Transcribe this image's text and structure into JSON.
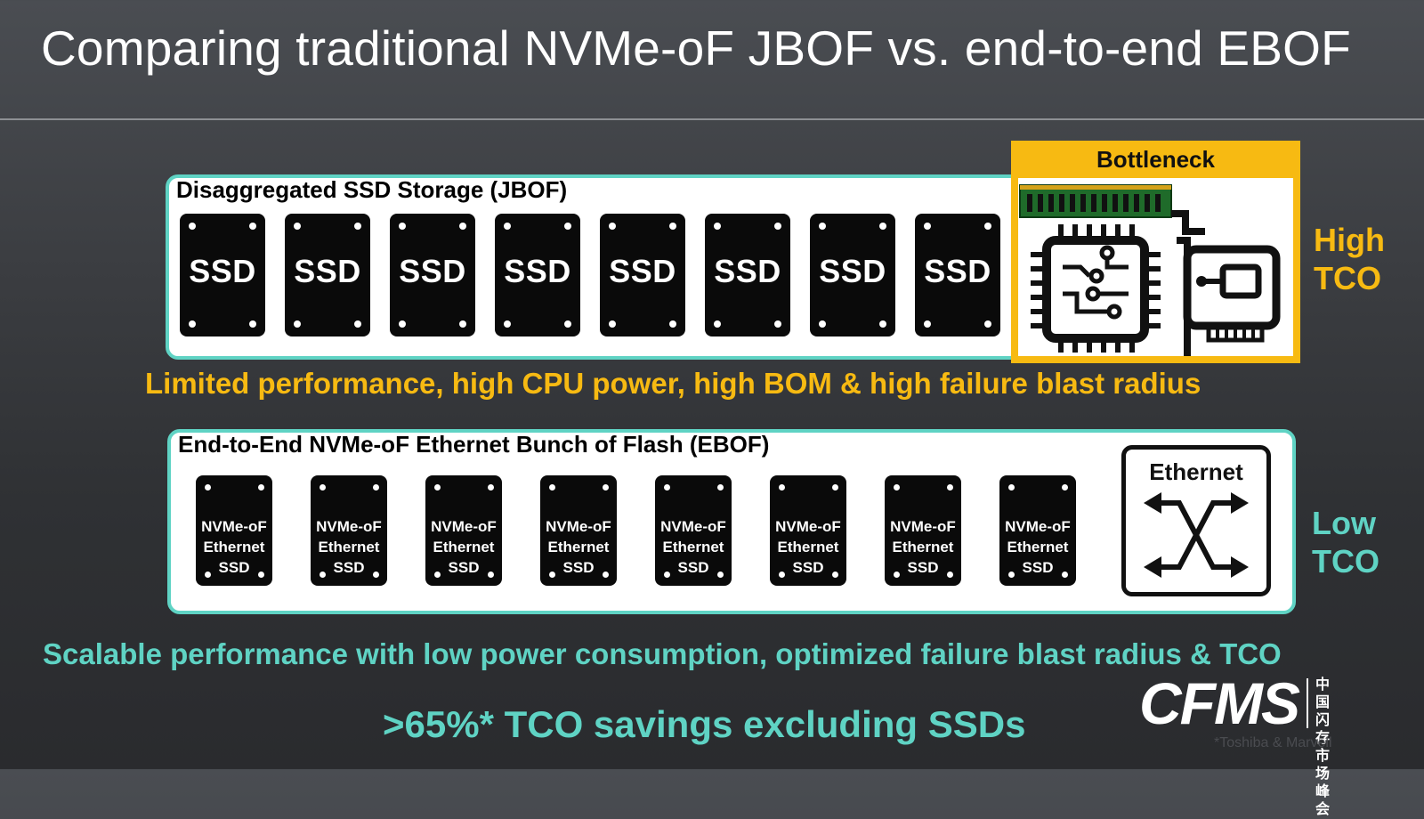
{
  "slide": {
    "title": "Comparing traditional NVMe-oF JBOF vs. end-to-end EBOF"
  },
  "jbof": {
    "title": "Disaggregated SSD Storage (JBOF)",
    "ssd_label": "SSD",
    "ssd_count": 8,
    "bottleneck_label": "Bottleneck",
    "bottleneck_icons": [
      "memory-module-icon",
      "cpu-chip-icon",
      "network-card-icon"
    ],
    "tco_label": "High\nTCO",
    "summary": "Limited performance, high CPU power, high BOM & high failure blast radius"
  },
  "ebof": {
    "title": "End-to-End NVMe-oF Ethernet Bunch of Flash (EBOF)",
    "ssd_label": "NVMe-oF\nEthernet\nSSD",
    "ssd_count": 8,
    "switch_label": "Ethernet",
    "tco_label": "Low\nTCO",
    "summary": "Scalable performance with low power consumption, optimized failure blast radius & TCO"
  },
  "savings": ">65%* TCO savings excluding SSDs",
  "logo": {
    "text": "CFMS",
    "chinese": "中国\n闪存市场\n峰会"
  },
  "footnote": "*Toshiba & Marvell",
  "colors": {
    "accent_teal": "#5fd3c4",
    "accent_yellow": "#f7ba12",
    "text_white": "#ffffff"
  }
}
